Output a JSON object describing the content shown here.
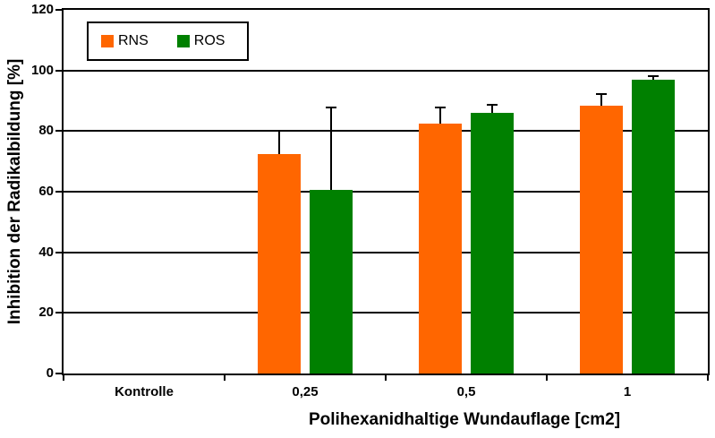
{
  "chart_data": {
    "type": "bar",
    "title": "",
    "categories": [
      "Kontrolle",
      "0,25",
      "0,5",
      "1"
    ],
    "series": [
      {
        "name": "RNS",
        "color": "#FF6600",
        "values": [
          0,
          72.5,
          82.5,
          88.5
        ],
        "errors_plus": [
          0,
          8,
          5.5,
          4
        ]
      },
      {
        "name": "ROS",
        "color": "#008000",
        "values": [
          0,
          60.5,
          86,
          97
        ],
        "errors_plus": [
          0,
          27.5,
          3,
          1.5
        ]
      }
    ],
    "xlabel": "Polihexanidhaltige Wundauflage [cm2]",
    "ylabel": "Inhibition der Radikalbildung [%]",
    "ylim": [
      0,
      120
    ],
    "yticks": [
      0,
      20,
      40,
      60,
      80,
      100,
      120
    ],
    "grid": true,
    "legend_position": "top-left",
    "error_bars": "upward only, black, capped",
    "axis_color": "#000000",
    "background_color": "#ffffff"
  }
}
